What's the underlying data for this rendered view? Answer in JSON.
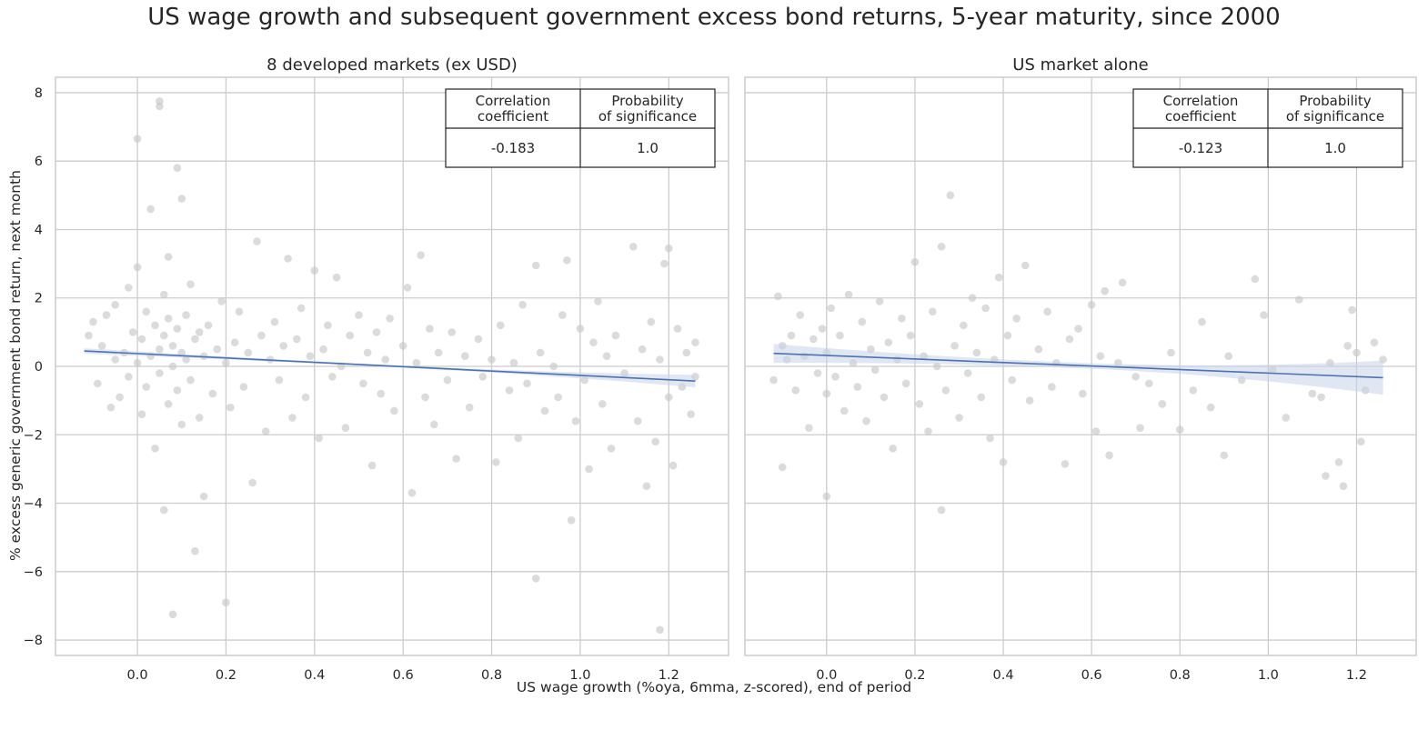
{
  "figure": {
    "title": "US wage growth and subsequent government excess bond returns, 5-year maturity, since 2000",
    "xlabel": "US wage growth (%oya, 6mma, z-scored), end of period",
    "ylabel": "% excess generic government bond return, next month"
  },
  "colors": {
    "points": "#c8c8c8",
    "regression": "#4c72b0",
    "ci_band": "#c7d4e8",
    "grid": "#cccccc",
    "frame": "#cccccc"
  },
  "chart_data": [
    {
      "type": "scatter",
      "title": "8 developed markets (ex USD)",
      "xlim": [
        -0.185,
        1.335
      ],
      "ylim": [
        -8.45,
        8.45
      ],
      "xticks": [
        0.0,
        0.2,
        0.4,
        0.6,
        0.8,
        1.0,
        1.2
      ],
      "xtick_labels": [
        "0.0",
        "0.2",
        "0.4",
        "0.6",
        "0.8",
        "1.0",
        "1.2"
      ],
      "yticks": [
        8,
        6,
        4,
        2,
        0,
        -2,
        -4,
        -6,
        -8
      ],
      "ytick_labels": [
        "8",
        "6",
        "4",
        "2",
        "0",
        "−2",
        "−4",
        "−6",
        "−8"
      ],
      "grid": true,
      "regression": {
        "x": [
          -0.12,
          1.26
        ],
        "y": [
          0.45,
          -0.43
        ],
        "ci_halfwidth": [
          0.08,
          0.03,
          0.18
        ]
      },
      "stats_table": {
        "headers": [
          "Correlation coefficient",
          "Probability of significance"
        ],
        "values": [
          "-0.183",
          "1.0"
        ],
        "position": "top-right"
      },
      "points": [
        [
          -0.11,
          0.9
        ],
        [
          -0.1,
          1.3
        ],
        [
          -0.09,
          -0.5
        ],
        [
          -0.08,
          0.6
        ],
        [
          -0.07,
          1.5
        ],
        [
          -0.06,
          -1.2
        ],
        [
          -0.05,
          0.2
        ],
        [
          -0.05,
          1.8
        ],
        [
          -0.04,
          -0.9
        ],
        [
          -0.03,
          0.4
        ],
        [
          -0.02,
          2.3
        ],
        [
          -0.02,
          -0.3
        ],
        [
          -0.01,
          1.0
        ],
        [
          0.0,
          0.1
        ],
        [
          0.0,
          2.9
        ],
        [
          0.0,
          6.65
        ],
        [
          0.01,
          -1.4
        ],
        [
          0.01,
          0.8
        ],
        [
          0.02,
          1.6
        ],
        [
          0.02,
          -0.6
        ],
        [
          0.03,
          0.3
        ],
        [
          0.03,
          4.6
        ],
        [
          0.04,
          -2.4
        ],
        [
          0.04,
          1.2
        ],
        [
          0.05,
          0.5
        ],
        [
          0.05,
          7.6
        ],
        [
          0.05,
          7.75
        ],
        [
          0.05,
          -0.2
        ],
        [
          0.06,
          2.1
        ],
        [
          0.06,
          -4.2
        ],
        [
          0.06,
          0.9
        ],
        [
          0.07,
          -1.1
        ],
        [
          0.07,
          1.4
        ],
        [
          0.07,
          3.2
        ],
        [
          0.08,
          0.0
        ],
        [
          0.08,
          -7.25
        ],
        [
          0.08,
          0.6
        ],
        [
          0.09,
          5.8
        ],
        [
          0.09,
          1.1
        ],
        [
          0.09,
          -0.7
        ],
        [
          0.1,
          0.4
        ],
        [
          0.1,
          4.9
        ],
        [
          0.1,
          -1.7
        ],
        [
          0.11,
          1.5
        ],
        [
          0.11,
          0.2
        ],
        [
          0.12,
          -0.4
        ],
        [
          0.12,
          2.4
        ],
        [
          0.13,
          0.8
        ],
        [
          0.13,
          -5.4
        ],
        [
          0.14,
          1.0
        ],
        [
          0.14,
          -1.5
        ],
        [
          0.15,
          0.3
        ],
        [
          0.15,
          -3.8
        ],
        [
          0.16,
          1.2
        ],
        [
          0.17,
          -0.8
        ],
        [
          0.18,
          0.5
        ],
        [
          0.19,
          1.9
        ],
        [
          0.2,
          -6.9
        ],
        [
          0.2,
          0.1
        ],
        [
          0.21,
          -1.2
        ],
        [
          0.22,
          0.7
        ],
        [
          0.23,
          1.6
        ],
        [
          0.24,
          -0.6
        ],
        [
          0.25,
          0.4
        ],
        [
          0.26,
          -3.4
        ],
        [
          0.27,
          3.65
        ],
        [
          0.28,
          0.9
        ],
        [
          0.29,
          -1.9
        ],
        [
          0.3,
          0.2
        ],
        [
          0.31,
          1.3
        ],
        [
          0.32,
          -0.4
        ],
        [
          0.33,
          0.6
        ],
        [
          0.34,
          3.15
        ],
        [
          0.35,
          -1.5
        ],
        [
          0.36,
          0.8
        ],
        [
          0.37,
          1.7
        ],
        [
          0.38,
          -0.9
        ],
        [
          0.39,
          0.3
        ],
        [
          0.4,
          2.8
        ],
        [
          0.41,
          -2.1
        ],
        [
          0.42,
          0.5
        ],
        [
          0.43,
          1.2
        ],
        [
          0.44,
          -0.3
        ],
        [
          0.45,
          2.6
        ],
        [
          0.46,
          0.0
        ],
        [
          0.47,
          -1.8
        ],
        [
          0.48,
          0.9
        ],
        [
          0.5,
          1.5
        ],
        [
          0.51,
          -0.5
        ],
        [
          0.52,
          0.4
        ],
        [
          0.53,
          -2.9
        ],
        [
          0.54,
          1.0
        ],
        [
          0.55,
          -0.8
        ],
        [
          0.56,
          0.2
        ],
        [
          0.57,
          1.4
        ],
        [
          0.58,
          -1.3
        ],
        [
          0.6,
          0.6
        ],
        [
          0.61,
          2.3
        ],
        [
          0.62,
          -3.7
        ],
        [
          0.63,
          0.1
        ],
        [
          0.64,
          3.25
        ],
        [
          0.65,
          -0.9
        ],
        [
          0.66,
          1.1
        ],
        [
          0.67,
          -1.7
        ],
        [
          0.68,
          0.4
        ],
        [
          0.7,
          -0.4
        ],
        [
          0.71,
          1.0
        ],
        [
          0.72,
          -2.7
        ],
        [
          0.74,
          0.3
        ],
        [
          0.75,
          -1.2
        ],
        [
          0.77,
          0.8
        ],
        [
          0.78,
          -0.3
        ],
        [
          0.8,
          0.2
        ],
        [
          0.81,
          -2.8
        ],
        [
          0.82,
          1.2
        ],
        [
          0.84,
          -0.7
        ],
        [
          0.85,
          0.1
        ],
        [
          0.86,
          -2.1
        ],
        [
          0.87,
          1.8
        ],
        [
          0.88,
          -0.5
        ],
        [
          0.9,
          2.95
        ],
        [
          0.9,
          -6.2
        ],
        [
          0.91,
          0.4
        ],
        [
          0.92,
          -1.3
        ],
        [
          0.94,
          0.0
        ],
        [
          0.95,
          -0.9
        ],
        [
          0.96,
          1.5
        ],
        [
          0.97,
          3.1
        ],
        [
          0.98,
          -4.5
        ],
        [
          0.99,
          -1.6
        ],
        [
          1.0,
          1.1
        ],
        [
          1.01,
          -0.4
        ],
        [
          1.02,
          -3.0
        ],
        [
          1.03,
          0.7
        ],
        [
          1.04,
          1.9
        ],
        [
          1.05,
          -1.1
        ],
        [
          1.06,
          0.3
        ],
        [
          1.07,
          -2.4
        ],
        [
          1.08,
          0.9
        ],
        [
          1.1,
          -0.2
        ],
        [
          1.12,
          3.5
        ],
        [
          1.13,
          -1.6
        ],
        [
          1.14,
          0.5
        ],
        [
          1.15,
          -3.5
        ],
        [
          1.16,
          1.3
        ],
        [
          1.17,
          -2.2
        ],
        [
          1.18,
          -7.7
        ],
        [
          1.18,
          0.2
        ],
        [
          1.19,
          3.0
        ],
        [
          1.2,
          3.45
        ],
        [
          1.2,
          -0.9
        ],
        [
          1.21,
          -2.9
        ],
        [
          1.22,
          1.1
        ],
        [
          1.23,
          -0.6
        ],
        [
          1.24,
          0.4
        ],
        [
          1.25,
          -1.4
        ],
        [
          1.26,
          0.7
        ],
        [
          1.26,
          -0.3
        ]
      ]
    },
    {
      "type": "scatter",
      "title": "US market alone",
      "xlim": [
        -0.185,
        1.335
      ],
      "ylim": [
        -8.45,
        8.45
      ],
      "xticks": [
        0.0,
        0.2,
        0.4,
        0.6,
        0.8,
        1.0,
        1.2
      ],
      "xtick_labels": [
        "0.0",
        "0.2",
        "0.4",
        "0.6",
        "0.8",
        "1.0",
        "1.2"
      ],
      "yticks": [
        8,
        6,
        4,
        2,
        0,
        -2,
        -4,
        -6,
        -8
      ],
      "grid": true,
      "regression": {
        "x": [
          -0.12,
          1.26
        ],
        "y": [
          0.38,
          -0.33
        ],
        "ci_halfwidth": [
          0.28,
          0.08,
          0.5
        ]
      },
      "stats_table": {
        "headers": [
          "Correlation coefficient",
          "Probability of significance"
        ],
        "values": [
          "-0.123",
          "1.0"
        ],
        "position": "top-right"
      },
      "points": [
        [
          -0.12,
          -0.4
        ],
        [
          -0.11,
          2.05
        ],
        [
          -0.1,
          0.6
        ],
        [
          -0.1,
          -2.95
        ],
        [
          -0.09,
          0.2
        ],
        [
          -0.08,
          0.9
        ],
        [
          -0.07,
          -0.7
        ],
        [
          -0.06,
          1.5
        ],
        [
          -0.05,
          0.3
        ],
        [
          -0.04,
          -1.8
        ],
        [
          -0.03,
          0.8
        ],
        [
          -0.02,
          -0.2
        ],
        [
          -0.01,
          1.1
        ],
        [
          0.0,
          0.4
        ],
        [
          0.0,
          -0.8
        ],
        [
          0.0,
          -3.8
        ],
        [
          0.01,
          1.7
        ],
        [
          0.02,
          -0.3
        ],
        [
          0.03,
          0.9
        ],
        [
          0.04,
          -1.3
        ],
        [
          0.05,
          2.1
        ],
        [
          0.06,
          0.1
        ],
        [
          0.07,
          -0.6
        ],
        [
          0.08,
          1.3
        ],
        [
          0.09,
          -1.6
        ],
        [
          0.1,
          0.5
        ],
        [
          0.11,
          -0.1
        ],
        [
          0.12,
          1.9
        ],
        [
          0.13,
          -0.9
        ],
        [
          0.14,
          0.7
        ],
        [
          0.15,
          -2.4
        ],
        [
          0.16,
          0.2
        ],
        [
          0.17,
          1.4
        ],
        [
          0.18,
          -0.5
        ],
        [
          0.19,
          0.9
        ],
        [
          0.2,
          3.05
        ],
        [
          0.21,
          -1.1
        ],
        [
          0.22,
          0.3
        ],
        [
          0.23,
          -1.9
        ],
        [
          0.24,
          1.6
        ],
        [
          0.25,
          0.0
        ],
        [
          0.26,
          3.5
        ],
        [
          0.26,
          -4.2
        ],
        [
          0.27,
          -0.7
        ],
        [
          0.28,
          5.0
        ],
        [
          0.29,
          0.6
        ],
        [
          0.3,
          -1.5
        ],
        [
          0.31,
          1.2
        ],
        [
          0.32,
          -0.2
        ],
        [
          0.33,
          2.0
        ],
        [
          0.34,
          0.4
        ],
        [
          0.35,
          -0.9
        ],
        [
          0.36,
          1.7
        ],
        [
          0.37,
          -2.1
        ],
        [
          0.38,
          0.2
        ],
        [
          0.39,
          2.6
        ],
        [
          0.4,
          -2.8
        ],
        [
          0.41,
          0.9
        ],
        [
          0.42,
          -0.4
        ],
        [
          0.43,
          1.4
        ],
        [
          0.45,
          2.95
        ],
        [
          0.46,
          -1.0
        ],
        [
          0.48,
          0.5
        ],
        [
          0.5,
          1.6
        ],
        [
          0.51,
          -0.6
        ],
        [
          0.52,
          0.1
        ],
        [
          0.54,
          -2.85
        ],
        [
          0.55,
          0.8
        ],
        [
          0.57,
          1.1
        ],
        [
          0.58,
          -0.8
        ],
        [
          0.6,
          1.8
        ],
        [
          0.61,
          -1.9
        ],
        [
          0.62,
          0.3
        ],
        [
          0.63,
          2.2
        ],
        [
          0.64,
          -2.6
        ],
        [
          0.66,
          0.1
        ],
        [
          0.67,
          2.45
        ],
        [
          0.7,
          -0.3
        ],
        [
          0.71,
          -1.8
        ],
        [
          0.73,
          -0.5
        ],
        [
          0.76,
          -1.1
        ],
        [
          0.78,
          0.4
        ],
        [
          0.8,
          -1.85
        ],
        [
          0.83,
          -0.7
        ],
        [
          0.85,
          1.3
        ],
        [
          0.87,
          -1.2
        ],
        [
          0.9,
          -2.6
        ],
        [
          0.91,
          0.3
        ],
        [
          0.94,
          -0.4
        ],
        [
          0.97,
          2.55
        ],
        [
          0.99,
          1.5
        ],
        [
          1.01,
          -0.1
        ],
        [
          1.04,
          -1.5
        ],
        [
          1.07,
          1.95
        ],
        [
          1.1,
          -0.8
        ],
        [
          1.12,
          -0.9
        ],
        [
          1.13,
          -3.2
        ],
        [
          1.14,
          0.1
        ],
        [
          1.16,
          -2.8
        ],
        [
          1.17,
          -3.5
        ],
        [
          1.18,
          0.6
        ],
        [
          1.19,
          1.65
        ],
        [
          1.2,
          0.4
        ],
        [
          1.21,
          -2.2
        ],
        [
          1.22,
          -0.7
        ],
        [
          1.24,
          0.7
        ],
        [
          1.26,
          0.2
        ]
      ]
    }
  ]
}
